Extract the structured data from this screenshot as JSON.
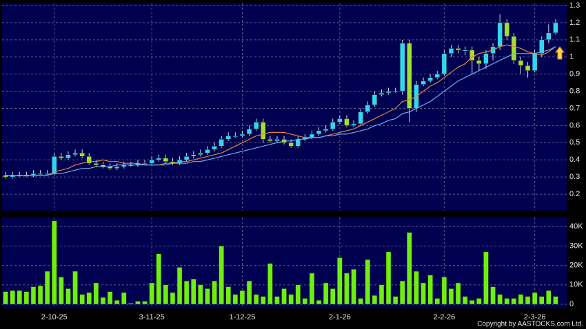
{
  "chart_data": {
    "type": "candlestick",
    "categories": [
      null,
      null,
      null,
      null,
      null,
      null,
      null,
      "2-10-25",
      null,
      null,
      null,
      null,
      null,
      null,
      null,
      null,
      null,
      null,
      null,
      null,
      null,
      "3-11-25",
      null,
      null,
      null,
      null,
      null,
      null,
      null,
      null,
      null,
      null,
      null,
      null,
      "1-12-25",
      null,
      null,
      null,
      null,
      null,
      null,
      null,
      null,
      null,
      null,
      null,
      null,
      null,
      "2-1-26",
      null,
      null,
      null,
      null,
      null,
      null,
      null,
      null,
      null,
      null,
      null,
      null,
      null,
      null,
      "2-2-26",
      null,
      null,
      null,
      null,
      null,
      null,
      null,
      null,
      null,
      null,
      null,
      null,
      "2-3-26",
      null,
      null,
      null
    ],
    "open": [
      0.31,
      0.3,
      0.31,
      0.31,
      0.31,
      0.32,
      0.32,
      0.32,
      0.42,
      0.41,
      0.43,
      0.44,
      0.42,
      0.38,
      0.37,
      0.36,
      0.35,
      0.36,
      0.37,
      0.37,
      0.38,
      0.38,
      0.4,
      0.41,
      0.39,
      0.38,
      0.4,
      0.42,
      0.43,
      0.44,
      0.46,
      0.48,
      0.52,
      0.54,
      0.54,
      0.55,
      0.58,
      0.62,
      0.52,
      0.51,
      0.52,
      0.5,
      0.48,
      0.52,
      0.53,
      0.55,
      0.57,
      0.58,
      0.62,
      0.64,
      0.6,
      0.61,
      0.68,
      0.72,
      0.78,
      0.79,
      0.8,
      0.8,
      1.08,
      0.7,
      0.84,
      0.86,
      0.88,
      0.9,
      1.02,
      1.05,
      1.04,
      1.04,
      0.98,
      0.96,
      1.02,
      1.06,
      1.2,
      1.12,
      0.98,
      0.95,
      0.92,
      1.02,
      1.1,
      1.14
    ],
    "high": [
      0.33,
      0.33,
      0.33,
      0.33,
      0.34,
      0.34,
      0.34,
      0.44,
      0.44,
      0.45,
      0.46,
      0.46,
      0.44,
      0.4,
      0.39,
      0.38,
      0.38,
      0.39,
      0.39,
      0.4,
      0.4,
      0.42,
      0.43,
      0.43,
      0.41,
      0.42,
      0.44,
      0.45,
      0.46,
      0.48,
      0.5,
      0.54,
      0.56,
      0.56,
      0.57,
      0.6,
      0.64,
      0.64,
      0.54,
      0.54,
      0.54,
      0.52,
      0.54,
      0.55,
      0.57,
      0.59,
      0.6,
      0.64,
      0.66,
      0.66,
      0.63,
      0.7,
      0.74,
      0.8,
      0.81,
      0.82,
      0.82,
      1.1,
      1.1,
      0.86,
      0.88,
      0.9,
      0.92,
      1.04,
      1.07,
      1.07,
      1.06,
      1.06,
      1.0,
      1.04,
      1.08,
      1.25,
      1.22,
      1.14,
      1.0,
      0.97,
      1.04,
      1.12,
      1.19,
      1.22
    ],
    "low": [
      0.29,
      0.29,
      0.3,
      0.3,
      0.3,
      0.31,
      0.31,
      0.31,
      0.4,
      0.4,
      0.42,
      0.41,
      0.37,
      0.36,
      0.35,
      0.34,
      0.34,
      0.35,
      0.36,
      0.36,
      0.37,
      0.37,
      0.39,
      0.38,
      0.37,
      0.37,
      0.39,
      0.41,
      0.42,
      0.43,
      0.45,
      0.47,
      0.51,
      0.53,
      0.53,
      0.54,
      0.57,
      0.5,
      0.5,
      0.5,
      0.49,
      0.47,
      0.47,
      0.51,
      0.52,
      0.54,
      0.56,
      0.57,
      0.61,
      0.59,
      0.59,
      0.6,
      0.67,
      0.71,
      0.77,
      0.78,
      0.79,
      0.78,
      0.62,
      0.68,
      0.83,
      0.85,
      0.87,
      0.89,
      1.0,
      1.02,
      1.01,
      0.9,
      0.92,
      0.93,
      0.98,
      1.04,
      1.1,
      0.96,
      0.9,
      0.88,
      0.91,
      1.0,
      1.08,
      1.13
    ],
    "close": [
      0.3,
      0.31,
      0.31,
      0.31,
      0.32,
      0.32,
      0.32,
      0.42,
      0.41,
      0.43,
      0.44,
      0.42,
      0.38,
      0.37,
      0.36,
      0.35,
      0.36,
      0.37,
      0.37,
      0.38,
      0.38,
      0.4,
      0.41,
      0.39,
      0.38,
      0.4,
      0.42,
      0.43,
      0.44,
      0.46,
      0.48,
      0.52,
      0.54,
      0.54,
      0.55,
      0.58,
      0.62,
      0.52,
      0.51,
      0.52,
      0.5,
      0.48,
      0.52,
      0.53,
      0.55,
      0.57,
      0.58,
      0.62,
      0.64,
      0.6,
      0.61,
      0.68,
      0.72,
      0.78,
      0.79,
      0.8,
      0.8,
      1.08,
      0.7,
      0.84,
      0.86,
      0.88,
      0.9,
      1.02,
      1.05,
      1.04,
      1.04,
      0.98,
      0.96,
      1.02,
      1.06,
      1.2,
      1.12,
      0.98,
      0.95,
      0.92,
      1.02,
      1.1,
      1.14,
      1.2
    ],
    "moving_averages": [
      {
        "color": "#e8853a",
        "values": [
          0.31,
          0.31,
          0.31,
          0.31,
          0.31,
          0.31,
          0.31,
          0.33,
          0.34,
          0.35,
          0.37,
          0.38,
          0.39,
          0.39,
          0.4,
          0.39,
          0.39,
          0.38,
          0.38,
          0.38,
          0.37,
          0.37,
          0.37,
          0.38,
          0.38,
          0.39,
          0.39,
          0.4,
          0.41,
          0.42,
          0.43,
          0.44,
          0.46,
          0.48,
          0.5,
          0.52,
          0.54,
          0.55,
          0.56,
          0.56,
          0.56,
          0.55,
          0.54,
          0.53,
          0.53,
          0.53,
          0.54,
          0.55,
          0.56,
          0.57,
          0.58,
          0.6,
          0.62,
          0.64,
          0.66,
          0.68,
          0.7,
          0.74,
          0.75,
          0.77,
          0.8,
          0.83,
          0.85,
          0.88,
          0.91,
          0.94,
          0.96,
          1.0,
          1.02,
          1.03,
          1.04,
          1.06,
          1.07,
          1.06,
          1.05,
          1.03,
          1.02,
          1.01,
          1.03,
          1.06
        ]
      },
      {
        "color": "#6aaef0",
        "values": [
          0.31,
          0.31,
          0.31,
          0.31,
          0.31,
          0.31,
          0.31,
          0.32,
          0.32,
          0.33,
          0.34,
          0.35,
          0.35,
          0.36,
          0.36,
          0.36,
          0.37,
          0.37,
          0.37,
          0.37,
          0.37,
          0.37,
          0.37,
          0.37,
          0.38,
          0.38,
          0.38,
          0.39,
          0.39,
          0.4,
          0.41,
          0.42,
          0.43,
          0.44,
          0.45,
          0.46,
          0.47,
          0.48,
          0.49,
          0.5,
          0.51,
          0.51,
          0.52,
          0.52,
          0.53,
          0.53,
          0.54,
          0.54,
          0.55,
          0.55,
          0.56,
          0.57,
          0.58,
          0.6,
          0.61,
          0.63,
          0.64,
          0.67,
          0.68,
          0.7,
          0.72,
          0.74,
          0.77,
          0.8,
          0.83,
          0.86,
          0.88,
          0.9,
          0.92,
          0.94,
          0.96,
          0.98,
          1.0,
          1.02,
          1.02,
          1.02,
          1.02,
          1.03,
          1.04,
          1.06
        ]
      }
    ],
    "up_color": "#33d6ee",
    "down_color": "#a0e030",
    "ylim": [
      0.1,
      1.3
    ],
    "yticks": [
      0.2,
      0.3,
      0.4,
      0.5,
      0.6,
      0.7,
      0.8,
      0.9,
      1,
      1.1,
      1.2,
      1.3
    ],
    "volume": {
      "color": "#6fef10",
      "values": [
        6500,
        7000,
        7000,
        6500,
        9000,
        9500,
        17000,
        43000,
        14000,
        8000,
        17000,
        5000,
        6000,
        11000,
        3500,
        6500,
        2000,
        6000,
        500,
        1500,
        1500,
        11000,
        26000,
        10000,
        6000,
        19000,
        12000,
        13000,
        10000,
        8000,
        12000,
        30000,
        9000,
        5000,
        7000,
        12000,
        5000,
        4000,
        21000,
        4000,
        8000,
        5000,
        10000,
        3000,
        16000,
        2000,
        11000,
        8000,
        24000,
        16000,
        18000,
        3000,
        23000,
        4500,
        10000,
        27000,
        4000,
        12000,
        37000,
        17000,
        11000,
        15000,
        3000,
        14000,
        8000,
        11000,
        4000,
        2000,
        3000,
        27000,
        9000,
        5000,
        3000,
        3000,
        5000,
        4000,
        6000,
        4000,
        7000,
        4000
      ],
      "ylim": [
        0,
        44000
      ],
      "yticks": [
        0,
        {
          "value": 10000,
          "label": "10K"
        },
        {
          "value": 20000,
          "label": "20K"
        },
        {
          "value": 30000,
          "label": "30K"
        },
        {
          "value": 40000,
          "label": "40K"
        }
      ]
    },
    "grid": true,
    "copyright": "Copyright by AASTOCKS.com Ltd."
  }
}
